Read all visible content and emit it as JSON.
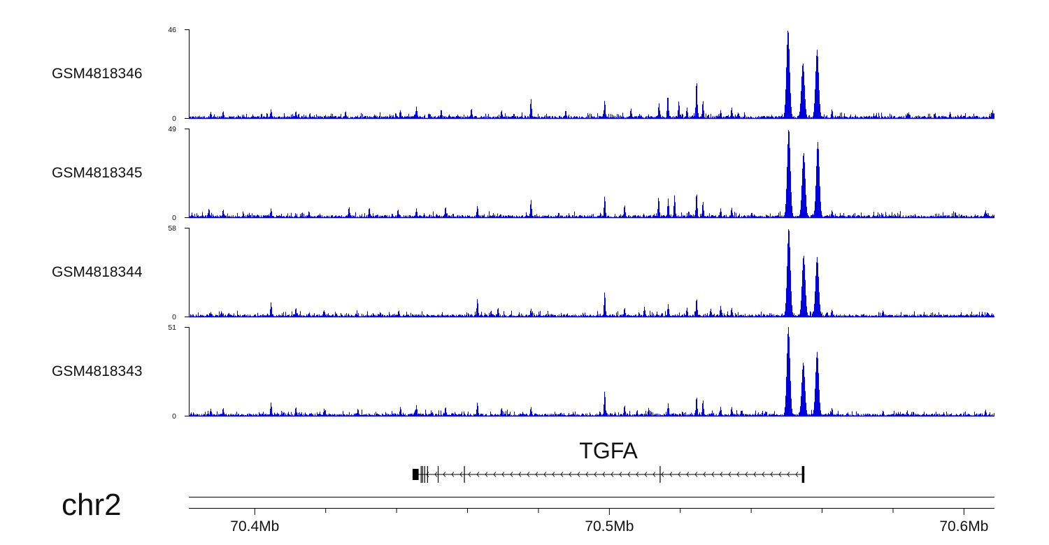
{
  "chart_data": {
    "type": "area",
    "x_unit_label": "Mb",
    "xlim_mb": [
      70.3814,
      70.6086
    ],
    "colors": {
      "signal": "#0000dd",
      "axis": "#000000",
      "text": "#111111"
    },
    "tracks": [
      {
        "name": "GSM4818346",
        "ymax": 46,
        "ymin": 0,
        "peaks": [
          [
            70.3875,
            0.07
          ],
          [
            70.391,
            0.08
          ],
          [
            70.4045,
            0.1
          ],
          [
            70.4115,
            0.08
          ],
          [
            70.4255,
            0.08
          ],
          [
            70.441,
            0.09
          ],
          [
            70.4455,
            0.13
          ],
          [
            70.4525,
            0.1
          ],
          [
            70.461,
            0.11
          ],
          [
            70.4695,
            0.09
          ],
          [
            70.4778,
            0.22
          ],
          [
            70.4876,
            0.09
          ],
          [
            70.4986,
            0.2
          ],
          [
            70.506,
            0.11
          ],
          [
            70.5139,
            0.17
          ],
          [
            70.5164,
            0.26
          ],
          [
            70.5195,
            0.19
          ],
          [
            70.5218,
            0.12
          ],
          [
            70.5245,
            0.43
          ],
          [
            70.5263,
            0.2
          ],
          [
            70.5313,
            0.09
          ],
          [
            70.5344,
            0.12
          ],
          [
            70.5503,
            1.0
          ],
          [
            70.5545,
            0.62
          ],
          [
            70.5585,
            0.77
          ],
          [
            70.5627,
            0.1
          ],
          [
            70.584,
            0.06
          ],
          [
            70.596,
            0.07
          ],
          [
            70.608,
            0.09
          ]
        ]
      },
      {
        "name": "GSM4818345",
        "ymax": 49,
        "ymin": 0,
        "peaks": [
          [
            70.387,
            0.1
          ],
          [
            70.391,
            0.09
          ],
          [
            70.4045,
            0.1
          ],
          [
            70.4152,
            0.07
          ],
          [
            70.4265,
            0.12
          ],
          [
            70.4322,
            0.11
          ],
          [
            70.4403,
            0.09
          ],
          [
            70.4455,
            0.1
          ],
          [
            70.4537,
            0.12
          ],
          [
            70.4627,
            0.13
          ],
          [
            70.4778,
            0.2
          ],
          [
            70.4986,
            0.24
          ],
          [
            70.5042,
            0.14
          ],
          [
            70.5138,
            0.23
          ],
          [
            70.5165,
            0.21
          ],
          [
            70.5183,
            0.25
          ],
          [
            70.5245,
            0.28
          ],
          [
            70.5263,
            0.18
          ],
          [
            70.5313,
            0.1
          ],
          [
            70.5344,
            0.11
          ],
          [
            70.5505,
            1.0
          ],
          [
            70.5547,
            0.73
          ],
          [
            70.5587,
            0.85
          ],
          [
            70.5627,
            0.08
          ],
          [
            70.606,
            0.08
          ]
        ]
      },
      {
        "name": "GSM4818344",
        "ymax": 58,
        "ymin": 0,
        "peaks": [
          [
            70.3875,
            0.05
          ],
          [
            70.3905,
            0.06
          ],
          [
            70.4045,
            0.16
          ],
          [
            70.4115,
            0.1
          ],
          [
            70.4195,
            0.07
          ],
          [
            70.4353,
            0.05
          ],
          [
            70.4405,
            0.07
          ],
          [
            70.4627,
            0.2
          ],
          [
            70.4685,
            0.1
          ],
          [
            70.4778,
            0.09
          ],
          [
            70.4986,
            0.28
          ],
          [
            70.5042,
            0.1
          ],
          [
            70.5098,
            0.11
          ],
          [
            70.5165,
            0.14
          ],
          [
            70.5218,
            0.1
          ],
          [
            70.5245,
            0.21
          ],
          [
            70.5285,
            0.09
          ],
          [
            70.5313,
            0.12
          ],
          [
            70.5344,
            0.1
          ],
          [
            70.5505,
            1.0
          ],
          [
            70.5547,
            0.69
          ],
          [
            70.5585,
            0.67
          ],
          [
            70.5627,
            0.08
          ],
          [
            70.5771,
            0.07
          ],
          [
            70.6065,
            0.05
          ]
        ]
      },
      {
        "name": "GSM4818343",
        "ymax": 51,
        "ymin": 0,
        "peaks": [
          [
            70.3875,
            0.08
          ],
          [
            70.391,
            0.09
          ],
          [
            70.4045,
            0.15
          ],
          [
            70.4115,
            0.1
          ],
          [
            70.4195,
            0.08
          ],
          [
            70.429,
            0.08
          ],
          [
            70.441,
            0.1
          ],
          [
            70.4455,
            0.12
          ],
          [
            70.4537,
            0.1
          ],
          [
            70.4627,
            0.15
          ],
          [
            70.4695,
            0.09
          ],
          [
            70.4778,
            0.1
          ],
          [
            70.4986,
            0.28
          ],
          [
            70.5042,
            0.12
          ],
          [
            70.511,
            0.09
          ],
          [
            70.5165,
            0.14
          ],
          [
            70.5245,
            0.22
          ],
          [
            70.5263,
            0.18
          ],
          [
            70.5313,
            0.1
          ],
          [
            70.5344,
            0.1
          ],
          [
            70.5504,
            1.0
          ],
          [
            70.5546,
            0.6
          ],
          [
            70.5585,
            0.72
          ],
          [
            70.5627,
            0.09
          ],
          [
            70.5771,
            0.06
          ],
          [
            70.606,
            0.07
          ]
        ]
      }
    ],
    "gene": {
      "name": "TGFA",
      "start_mb": 70.4445,
      "end_mb": 70.555,
      "strand": "-",
      "exons_mb": [
        [
          70.4445,
          70.4462
        ],
        [
          70.4468,
          70.447
        ],
        [
          70.4472,
          70.4474
        ],
        [
          70.4478,
          70.448
        ],
        [
          70.4486,
          70.4488
        ],
        [
          70.4516,
          70.4518
        ],
        [
          70.459,
          70.4592
        ],
        [
          70.5142,
          70.5144
        ],
        [
          70.5543,
          70.555
        ]
      ]
    },
    "axis": {
      "chromosome": "chr2",
      "major_ticks_mb": [
        70.4,
        70.5,
        70.6
      ],
      "major_tick_labels": [
        "70.4Mb",
        "70.5Mb",
        "70.6Mb"
      ],
      "minor_ticks_mb": [
        70.42,
        70.44,
        70.46,
        70.48,
        70.52,
        70.54,
        70.56,
        70.58
      ]
    }
  }
}
